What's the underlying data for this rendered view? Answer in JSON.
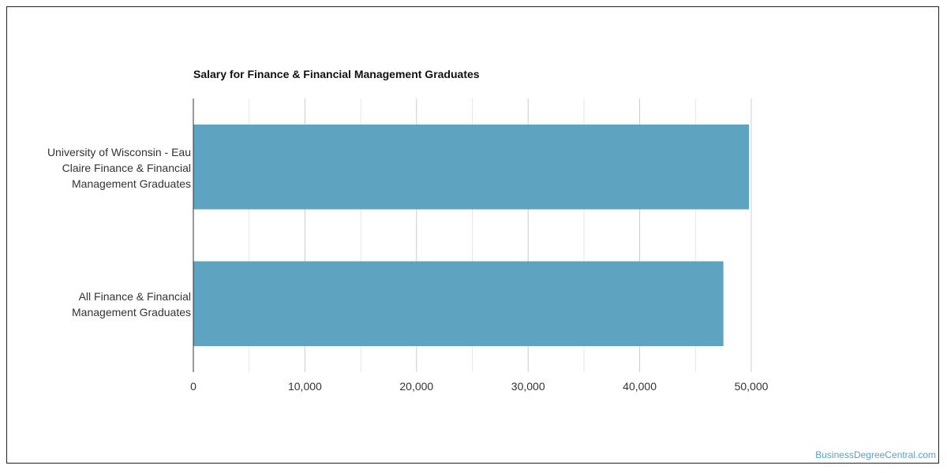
{
  "chart_data": {
    "type": "bar",
    "orientation": "horizontal",
    "title": "Salary for Finance & Financial Management Graduates",
    "categories": [
      "University of Wisconsin - Eau Claire Finance & Financial Management Graduates",
      "All Finance & Financial Management Graduates"
    ],
    "category_lines": [
      [
        "University of Wisconsin - Eau",
        "Claire Finance & Financial",
        "Management Graduates"
      ],
      [
        "All Finance & Financial",
        "Management Graduates"
      ]
    ],
    "values": [
      49800,
      47500
    ],
    "xlim": [
      0,
      50000
    ],
    "xticks": [
      0,
      10000,
      20000,
      30000,
      40000,
      50000
    ],
    "xtick_labels": [
      "0",
      "10,000",
      "20,000",
      "30,000",
      "40,000",
      "50,000"
    ],
    "grid": true,
    "bar_color": "#5ea3c0"
  },
  "watermark": "BusinessDegreeCentral.com"
}
